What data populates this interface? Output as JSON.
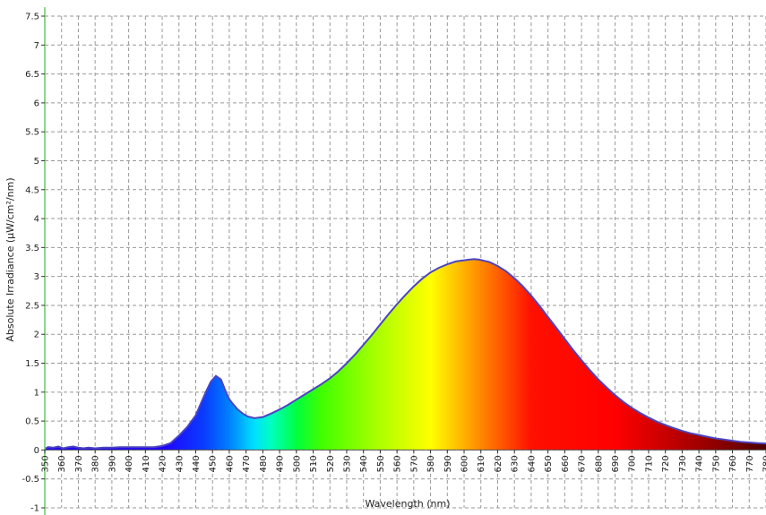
{
  "chart_data": {
    "type": "area",
    "title": "",
    "xlabel": "Wavelength (nm)",
    "ylabel": "Absolute Irradiance (µW/cm²/nm)",
    "xlim": [
      350,
      780
    ],
    "ylim": [
      -1,
      7.5
    ],
    "grid": true,
    "x_ticks": [
      "350",
      "360",
      "370",
      "380",
      "390",
      "400",
      "410",
      "420",
      "430",
      "440",
      "450",
      "460",
      "470",
      "480",
      "490",
      "500",
      "510",
      "520",
      "530",
      "540",
      "550",
      "560",
      "570",
      "580",
      "590",
      "600",
      "610",
      "620",
      "630",
      "640",
      "650",
      "660",
      "670",
      "680",
      "690",
      "700",
      "710",
      "720",
      "730",
      "740",
      "750",
      "760",
      "770",
      "780"
    ],
    "y_ticks": [
      "-1",
      "-0.5",
      "0",
      "0.5",
      "1",
      "1.5",
      "2",
      "2.5",
      "3",
      "3.5",
      "4",
      "4.5",
      "5",
      "5.5",
      "6",
      "6.5",
      "7",
      "7.5"
    ],
    "series": [
      {
        "x": [
          350,
          352,
          355,
          358,
          361,
          364,
          367,
          370,
          373,
          376,
          380,
          385,
          390,
          395,
          400,
          405,
          410,
          415,
          420,
          425,
          430,
          435,
          440,
          443,
          446,
          449,
          452,
          455,
          456,
          458,
          460,
          462,
          465,
          468,
          471,
          475,
          480,
          485,
          490,
          495,
          500,
          505,
          510,
          515,
          520,
          525,
          530,
          535,
          540,
          545,
          550,
          555,
          560,
          565,
          570,
          575,
          580,
          585,
          590,
          595,
          600,
          603,
          606,
          609,
          612,
          615,
          620,
          625,
          630,
          635,
          640,
          645,
          650,
          655,
          660,
          665,
          670,
          675,
          680,
          685,
          690,
          695,
          700,
          705,
          710,
          715,
          720,
          725,
          730,
          735,
          740,
          745,
          750,
          755,
          760,
          765,
          770,
          775,
          780
        ],
        "y": [
          0.02,
          0.05,
          0.04,
          0.06,
          0.03,
          0.05,
          0.06,
          0.04,
          0.03,
          0.04,
          0.03,
          0.04,
          0.04,
          0.05,
          0.05,
          0.05,
          0.05,
          0.05,
          0.07,
          0.12,
          0.25,
          0.4,
          0.6,
          0.8,
          1.0,
          1.18,
          1.28,
          1.22,
          1.15,
          1.0,
          0.88,
          0.8,
          0.7,
          0.63,
          0.58,
          0.55,
          0.57,
          0.63,
          0.7,
          0.78,
          0.87,
          0.96,
          1.05,
          1.14,
          1.24,
          1.36,
          1.5,
          1.65,
          1.82,
          1.99,
          2.17,
          2.35,
          2.52,
          2.68,
          2.83,
          2.96,
          3.07,
          3.15,
          3.21,
          3.26,
          3.28,
          3.29,
          3.3,
          3.29,
          3.27,
          3.25,
          3.18,
          3.09,
          2.97,
          2.83,
          2.67,
          2.49,
          2.3,
          2.11,
          1.92,
          1.73,
          1.55,
          1.38,
          1.22,
          1.08,
          0.95,
          0.83,
          0.73,
          0.64,
          0.56,
          0.49,
          0.43,
          0.38,
          0.33,
          0.29,
          0.26,
          0.23,
          0.2,
          0.18,
          0.16,
          0.14,
          0.13,
          0.12,
          0.11
        ]
      }
    ],
    "colors": {
      "line": "#4b45bf",
      "axis": "#66cc66",
      "grid": "#999999"
    }
  }
}
